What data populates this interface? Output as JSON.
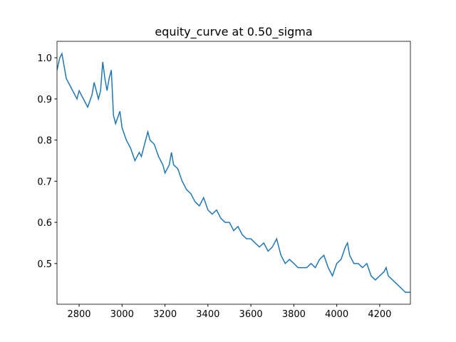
{
  "chart_data": {
    "type": "line",
    "title": "equity_curve at 0.50_sigma",
    "x": [
      2697,
      2710,
      2720,
      2730,
      2740,
      2760,
      2780,
      2790,
      2800,
      2820,
      2840,
      2860,
      2870,
      2880,
      2890,
      2900,
      2910,
      2920,
      2930,
      2940,
      2950,
      2960,
      2970,
      2990,
      3000,
      3020,
      3040,
      3060,
      3080,
      3090,
      3110,
      3120,
      3130,
      3150,
      3170,
      3190,
      3200,
      3220,
      3230,
      3240,
      3260,
      3280,
      3300,
      3320,
      3340,
      3360,
      3380,
      3400,
      3420,
      3440,
      3460,
      3480,
      3500,
      3520,
      3540,
      3560,
      3580,
      3600,
      3620,
      3640,
      3660,
      3680,
      3700,
      3720,
      3740,
      3760,
      3780,
      3800,
      3820,
      3840,
      3860,
      3880,
      3900,
      3920,
      3940,
      3960,
      3980,
      4000,
      4020,
      4040,
      4050,
      4060,
      4080,
      4100,
      4120,
      4140,
      4160,
      4180,
      4200,
      4220,
      4230,
      4240,
      4260,
      4280,
      4300,
      4320,
      4343
    ],
    "values": [
      0.97,
      1.0,
      1.01,
      0.98,
      0.95,
      0.93,
      0.91,
      0.9,
      0.92,
      0.9,
      0.88,
      0.91,
      0.94,
      0.92,
      0.9,
      0.92,
      0.99,
      0.95,
      0.92,
      0.95,
      0.97,
      0.86,
      0.84,
      0.87,
      0.83,
      0.8,
      0.78,
      0.75,
      0.77,
      0.76,
      0.8,
      0.82,
      0.8,
      0.79,
      0.76,
      0.74,
      0.72,
      0.74,
      0.77,
      0.74,
      0.73,
      0.7,
      0.68,
      0.67,
      0.65,
      0.64,
      0.66,
      0.63,
      0.62,
      0.63,
      0.61,
      0.6,
      0.6,
      0.58,
      0.59,
      0.57,
      0.56,
      0.56,
      0.55,
      0.54,
      0.55,
      0.53,
      0.54,
      0.56,
      0.52,
      0.5,
      0.51,
      0.5,
      0.49,
      0.49,
      0.49,
      0.5,
      0.49,
      0.51,
      0.52,
      0.49,
      0.47,
      0.5,
      0.51,
      0.54,
      0.55,
      0.52,
      0.5,
      0.5,
      0.49,
      0.5,
      0.47,
      0.46,
      0.47,
      0.48,
      0.49,
      0.47,
      0.46,
      0.45,
      0.44,
      0.43,
      0.43
    ],
    "color": "#1f77b4",
    "xlim": [
      2697,
      4343
    ],
    "xticks": [
      2800,
      3000,
      3200,
      3400,
      3600,
      3800,
      4000,
      4200
    ],
    "ylim": [
      0.401,
      1.04
    ],
    "yticks": [
      0.5,
      0.6,
      0.7,
      0.8,
      0.9,
      {
        "value": 1,
        "label": "1.0"
      }
    ],
    "grid": false
  }
}
